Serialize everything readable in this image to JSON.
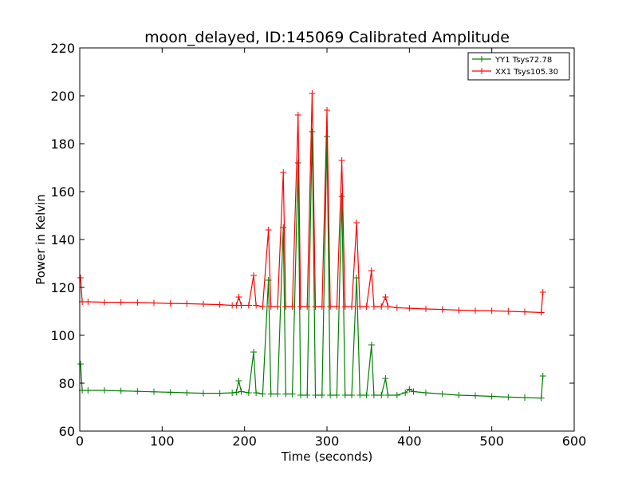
{
  "chart_data": {
    "type": "line",
    "title": "moon_delayed, ID:145069 Calibrated Amplitude",
    "xlabel": "Time (seconds)",
    "ylabel": "Power in Kelvin",
    "xlim": [
      0,
      600
    ],
    "ylim": [
      60,
      220
    ],
    "xticks": [
      0,
      100,
      200,
      300,
      400,
      500,
      600
    ],
    "yticks": [
      60,
      80,
      100,
      120,
      140,
      160,
      180,
      200,
      220
    ],
    "legend_position": "top-right",
    "grid": false,
    "series": [
      {
        "name": "YY1 Tsys72.78",
        "color": "#008000",
        "marker": "+",
        "points": [
          [
            1,
            88
          ],
          [
            3,
            77
          ],
          [
            10,
            77
          ],
          [
            30,
            77
          ],
          [
            50,
            76.8
          ],
          [
            70,
            76.6
          ],
          [
            90,
            76.4
          ],
          [
            110,
            76.2
          ],
          [
            130,
            76
          ],
          [
            150,
            75.8
          ],
          [
            170,
            75.8
          ],
          [
            185,
            76
          ],
          [
            190,
            76.2
          ],
          [
            193,
            81
          ],
          [
            196,
            76.5
          ],
          [
            205,
            76
          ],
          [
            211,
            93
          ],
          [
            214,
            76
          ],
          [
            222,
            75.5
          ],
          [
            229,
            123
          ],
          [
            232,
            75.5
          ],
          [
            240,
            75.5
          ],
          [
            247,
            145
          ],
          [
            250,
            75.5
          ],
          [
            258,
            75.5
          ],
          [
            265,
            172
          ],
          [
            268,
            75
          ],
          [
            276,
            75
          ],
          [
            282,
            185
          ],
          [
            286,
            75
          ],
          [
            294,
            75
          ],
          [
            300,
            183
          ],
          [
            304,
            75
          ],
          [
            312,
            75
          ],
          [
            318,
            158
          ],
          [
            322,
            75
          ],
          [
            330,
            75
          ],
          [
            336,
            124
          ],
          [
            340,
            75
          ],
          [
            348,
            75
          ],
          [
            354,
            96
          ],
          [
            357,
            75
          ],
          [
            366,
            75
          ],
          [
            371,
            82
          ],
          [
            374,
            75
          ],
          [
            385,
            75
          ],
          [
            395,
            76
          ],
          [
            400,
            77.5
          ],
          [
            405,
            76.5
          ],
          [
            420,
            76
          ],
          [
            440,
            75.5
          ],
          [
            460,
            75
          ],
          [
            480,
            74.8
          ],
          [
            500,
            74.5
          ],
          [
            520,
            74.2
          ],
          [
            540,
            74
          ],
          [
            560,
            73.8
          ],
          [
            562,
            83
          ]
        ]
      },
      {
        "name": "XX1 Tsys105.30",
        "color": "#ff0000",
        "marker": "+",
        "points": [
          [
            1,
            124
          ],
          [
            3,
            114
          ],
          [
            10,
            114
          ],
          [
            30,
            113.8
          ],
          [
            50,
            113.8
          ],
          [
            70,
            113.7
          ],
          [
            90,
            113.5
          ],
          [
            110,
            113.3
          ],
          [
            130,
            113.2
          ],
          [
            150,
            113
          ],
          [
            170,
            112.8
          ],
          [
            185,
            112.5
          ],
          [
            190,
            112.5
          ],
          [
            193,
            116
          ],
          [
            196,
            112.5
          ],
          [
            205,
            112.5
          ],
          [
            211,
            125
          ],
          [
            214,
            112.5
          ],
          [
            222,
            112
          ],
          [
            229,
            144
          ],
          [
            232,
            112
          ],
          [
            240,
            112
          ],
          [
            247,
            168
          ],
          [
            250,
            112
          ],
          [
            258,
            112
          ],
          [
            265,
            192
          ],
          [
            268,
            112
          ],
          [
            276,
            112
          ],
          [
            282,
            201
          ],
          [
            286,
            112
          ],
          [
            294,
            112
          ],
          [
            300,
            194
          ],
          [
            304,
            112
          ],
          [
            312,
            112
          ],
          [
            318,
            173
          ],
          [
            322,
            112
          ],
          [
            330,
            112
          ],
          [
            336,
            147
          ],
          [
            340,
            112
          ],
          [
            348,
            112
          ],
          [
            354,
            127
          ],
          [
            357,
            112
          ],
          [
            366,
            112
          ],
          [
            371,
            116
          ],
          [
            374,
            112
          ],
          [
            385,
            111.5
          ],
          [
            400,
            111.3
          ],
          [
            420,
            111
          ],
          [
            440,
            110.8
          ],
          [
            460,
            110.5
          ],
          [
            480,
            110.3
          ],
          [
            500,
            110.2
          ],
          [
            520,
            110
          ],
          [
            540,
            109.8
          ],
          [
            560,
            109.5
          ],
          [
            562,
            118
          ]
        ]
      }
    ]
  }
}
